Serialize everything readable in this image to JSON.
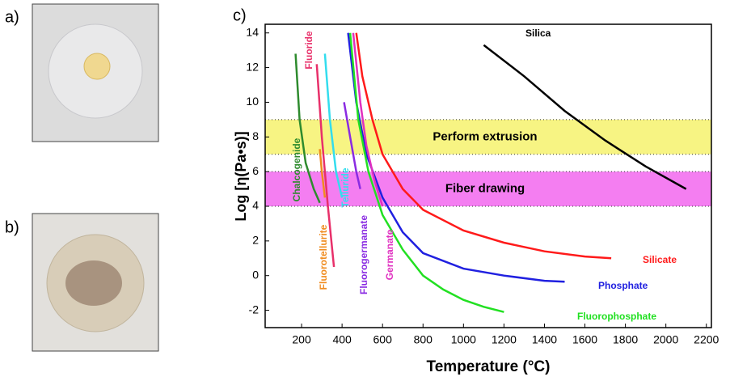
{
  "panels": {
    "a": "a)",
    "b": "b)",
    "c": "c)"
  },
  "chart_data": {
    "type": "line",
    "xlabel": "Temperature (°C)",
    "ylabel": "Log [η(Pa•s)]",
    "xlim": [
      20,
      2225
    ],
    "ylim": [
      -3,
      14.5
    ],
    "xticks": [
      200,
      400,
      600,
      800,
      1000,
      1200,
      1400,
      1600,
      1800,
      2000,
      2200
    ],
    "yticks": [
      -2,
      0,
      2,
      4,
      6,
      8,
      10,
      12,
      14
    ],
    "bands": [
      {
        "label": "Perform extrusion",
        "range": [
          7,
          9
        ],
        "color": "#f7f483"
      },
      {
        "label": "Fiber drawing",
        "range": [
          4,
          6
        ],
        "color": "#f47ef1"
      }
    ],
    "series": [
      {
        "name": "Silica",
        "color": "#000000",
        "x": [
          1100,
          1300,
          1500,
          1700,
          1900,
          2100
        ],
        "values": [
          13.3,
          11.5,
          9.5,
          7.8,
          6.3,
          5.0
        ]
      },
      {
        "name": "Silicate",
        "color": "#ff1a1a",
        "x": [
          470,
          500,
          550,
          600,
          700,
          800,
          1000,
          1200,
          1400,
          1600,
          1730
        ],
        "values": [
          14,
          11.5,
          9,
          7,
          5,
          3.8,
          2.6,
          1.9,
          1.4,
          1.1,
          1.0
        ]
      },
      {
        "name": "Phosphate",
        "color": "#2020e0",
        "x": [
          430,
          470,
          520,
          600,
          700,
          800,
          1000,
          1200,
          1400,
          1500
        ],
        "values": [
          14,
          10,
          7,
          4.5,
          2.5,
          1.3,
          0.4,
          0,
          -0.3,
          -0.35
        ]
      },
      {
        "name": "Fluorophosphate",
        "color": "#22e022",
        "x": [
          440,
          480,
          530,
          600,
          700,
          800,
          900,
          1000,
          1100,
          1200
        ],
        "values": [
          14,
          9,
          6,
          3.5,
          1.5,
          0,
          -0.8,
          -1.4,
          -1.8,
          -2.1
        ]
      },
      {
        "name": "Germanate",
        "color": "#e030c0",
        "x": [
          455,
          490,
          520,
          560,
          600
        ],
        "values": [
          14,
          10,
          7.5,
          5.5,
          4
        ]
      },
      {
        "name": "Fluorogermanate",
        "color": "#8a2be2",
        "x": [
          410,
          440,
          470,
          490
        ],
        "values": [
          10,
          8,
          6,
          5
        ]
      },
      {
        "name": "Telluride",
        "color": "#33ddee",
        "x": [
          315,
          340,
          370,
          400
        ],
        "values": [
          12.8,
          9,
          6,
          4.5
        ]
      },
      {
        "name": "Fluorotellurite",
        "color": "#f08c20",
        "x": [
          290,
          300,
          315
        ],
        "values": [
          7.3,
          6,
          4.5
        ]
      },
      {
        "name": "Fluoride",
        "color": "#e8306a",
        "x": [
          275,
          300,
          330,
          360
        ],
        "values": [
          12.2,
          8,
          4,
          0.5
        ]
      },
      {
        "name": "Chalcogenide",
        "color": "#2e8b2e",
        "x": [
          170,
          190,
          220,
          260,
          290
        ],
        "values": [
          12.8,
          9,
          6.5,
          5,
          4.2
        ]
      }
    ]
  }
}
